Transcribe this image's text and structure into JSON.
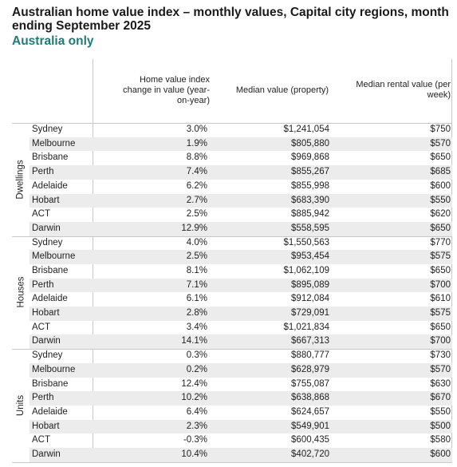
{
  "title": "Australian home value index – monthly values, Capital city regions, month ending September 2025",
  "subtitle": "Australia only",
  "table": {
    "headers": {
      "change": "Home value index change in value (year-on-year)",
      "median": "Median value (property)",
      "rent": "Median rental value (per week)"
    },
    "groups": [
      {
        "label": "Dwellings",
        "rows": [
          {
            "city": "Sydney",
            "change": "3.0%",
            "median": "$1,241,054",
            "rent": "$750"
          },
          {
            "city": "Melbourne",
            "change": "1.9%",
            "median": "$805,880",
            "rent": "$570"
          },
          {
            "city": "Brisbane",
            "change": "8.8%",
            "median": "$969,868",
            "rent": "$650"
          },
          {
            "city": "Perth",
            "change": "7.4%",
            "median": "$855,267",
            "rent": "$685"
          },
          {
            "city": "Adelaide",
            "change": "6.2%",
            "median": "$855,998",
            "rent": "$600"
          },
          {
            "city": "Hobart",
            "change": "2.7%",
            "median": "$683,390",
            "rent": "$550"
          },
          {
            "city": "ACT",
            "change": "2.5%",
            "median": "$885,942",
            "rent": "$620"
          },
          {
            "city": "Darwin",
            "change": "12.9%",
            "median": "$558,595",
            "rent": "$650"
          }
        ]
      },
      {
        "label": "Houses",
        "rows": [
          {
            "city": "Sydney",
            "change": "4.0%",
            "median": "$1,550,563",
            "rent": "$770"
          },
          {
            "city": "Melbourne",
            "change": "2.5%",
            "median": "$953,454",
            "rent": "$575"
          },
          {
            "city": "Brisbane",
            "change": "8.1%",
            "median": "$1,062,109",
            "rent": "$650"
          },
          {
            "city": "Perth",
            "change": "7.1%",
            "median": "$895,089",
            "rent": "$700"
          },
          {
            "city": "Adelaide",
            "change": "6.1%",
            "median": "$912,084",
            "rent": "$610"
          },
          {
            "city": "Hobart",
            "change": "2.8%",
            "median": "$729,091",
            "rent": "$575"
          },
          {
            "city": "ACT",
            "change": "3.4%",
            "median": "$1,021,834",
            "rent": "$650"
          },
          {
            "city": "Darwin",
            "change": "14.1%",
            "median": "$667,313",
            "rent": "$700"
          }
        ]
      },
      {
        "label": "Units",
        "rows": [
          {
            "city": "Sydney",
            "change": "0.3%",
            "median": "$880,777",
            "rent": "$730"
          },
          {
            "city": "Melbourne",
            "change": "0.2%",
            "median": "$628,979",
            "rent": "$570"
          },
          {
            "city": "Brisbane",
            "change": "12.4%",
            "median": "$755,087",
            "rent": "$630"
          },
          {
            "city": "Perth",
            "change": "10.2%",
            "median": "$638,868",
            "rent": "$670"
          },
          {
            "city": "Adelaide",
            "change": "6.4%",
            "median": "$624,657",
            "rent": "$550"
          },
          {
            "city": "Hobart",
            "change": "2.3%",
            "median": "$549,901",
            "rent": "$500"
          },
          {
            "city": "ACT",
            "change": "-0.3%",
            "median": "$600,435",
            "rent": "$580"
          },
          {
            "city": "Darwin",
            "change": "10.4%",
            "median": "$402,720",
            "rent": "$600"
          }
        ]
      }
    ]
  }
}
